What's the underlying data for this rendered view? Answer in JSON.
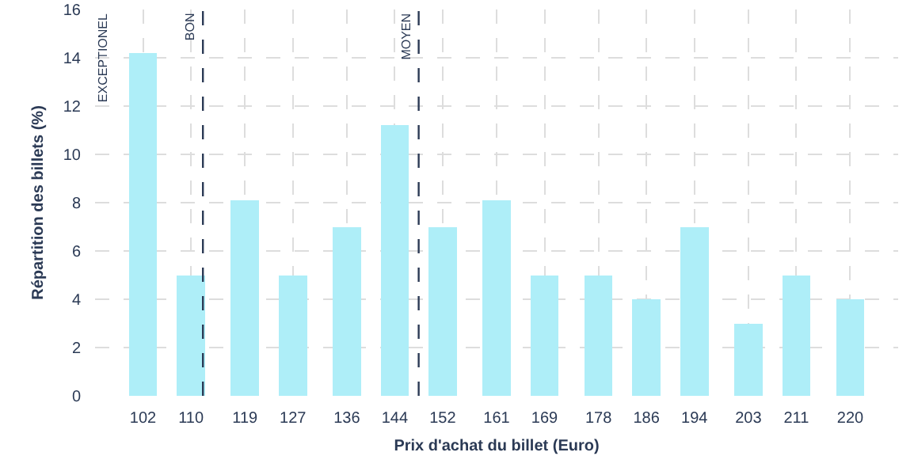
{
  "chart_data": {
    "type": "bar",
    "xlabel": "Prix d'achat du billet (Euro)",
    "ylabel": "Répartition des billets (%)",
    "x": [
      102,
      110,
      119,
      127,
      136,
      144,
      152,
      161,
      169,
      178,
      186,
      194,
      203,
      211,
      220
    ],
    "values": [
      14.2,
      5,
      8.1,
      5,
      7,
      11.2,
      7,
      8.1,
      5,
      5,
      4,
      7,
      3,
      5,
      4
    ],
    "color": "#aeeef8",
    "xlim": [
      94,
      228
    ],
    "xticks": [
      102,
      110,
      119,
      127,
      136,
      144,
      152,
      161,
      169,
      178,
      186,
      194,
      203,
      211,
      220
    ],
    "ylim": [
      0,
      16
    ],
    "yticks": [
      0,
      2,
      4,
      6,
      8,
      10,
      12,
      14,
      16
    ],
    "grid": true,
    "ref_lines": [
      {
        "axis": "x",
        "value": 112,
        "label": "BON",
        "color": "#2b3a55",
        "line_style": "dashed"
      },
      {
        "axis": "x",
        "value": 148,
        "label": "MOYEN",
        "color": "#2b3a55",
        "line_style": "dashed"
      }
    ],
    "annotations": [
      "EXCEPTIONEL"
    ]
  }
}
